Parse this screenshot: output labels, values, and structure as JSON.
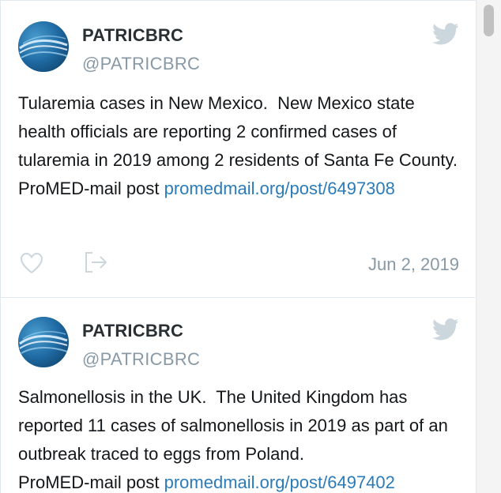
{
  "colors": {
    "name": "#292f33",
    "handle": "#8899a6",
    "text": "#14171a",
    "link": "#2b7bb9",
    "icon": "#ccd6dd",
    "divider": "#e1e8ed"
  },
  "tweets": [
    {
      "author_name": "PATRICBRC",
      "author_handle": "@PATRICBRC",
      "text": "Tularemia cases in New Mexico.  New Mexico state health officials are reporting 2 confirmed cases of tularemia in 2019 among 2 residents of Santa Fe County.\nProMED-mail post ",
      "link": "promedmail.org/post/6497308",
      "date": "Jun 2, 2019"
    },
    {
      "author_name": "PATRICBRC",
      "author_handle": "@PATRICBRC",
      "text": "Salmonellosis in the UK.  The United Kingdom has reported 11 cases of salmonellosis in 2019 as part of an outbreak traced to eggs from Poland.\nProMED-mail post ",
      "link": "promedmail.org/post/6497402"
    }
  ]
}
